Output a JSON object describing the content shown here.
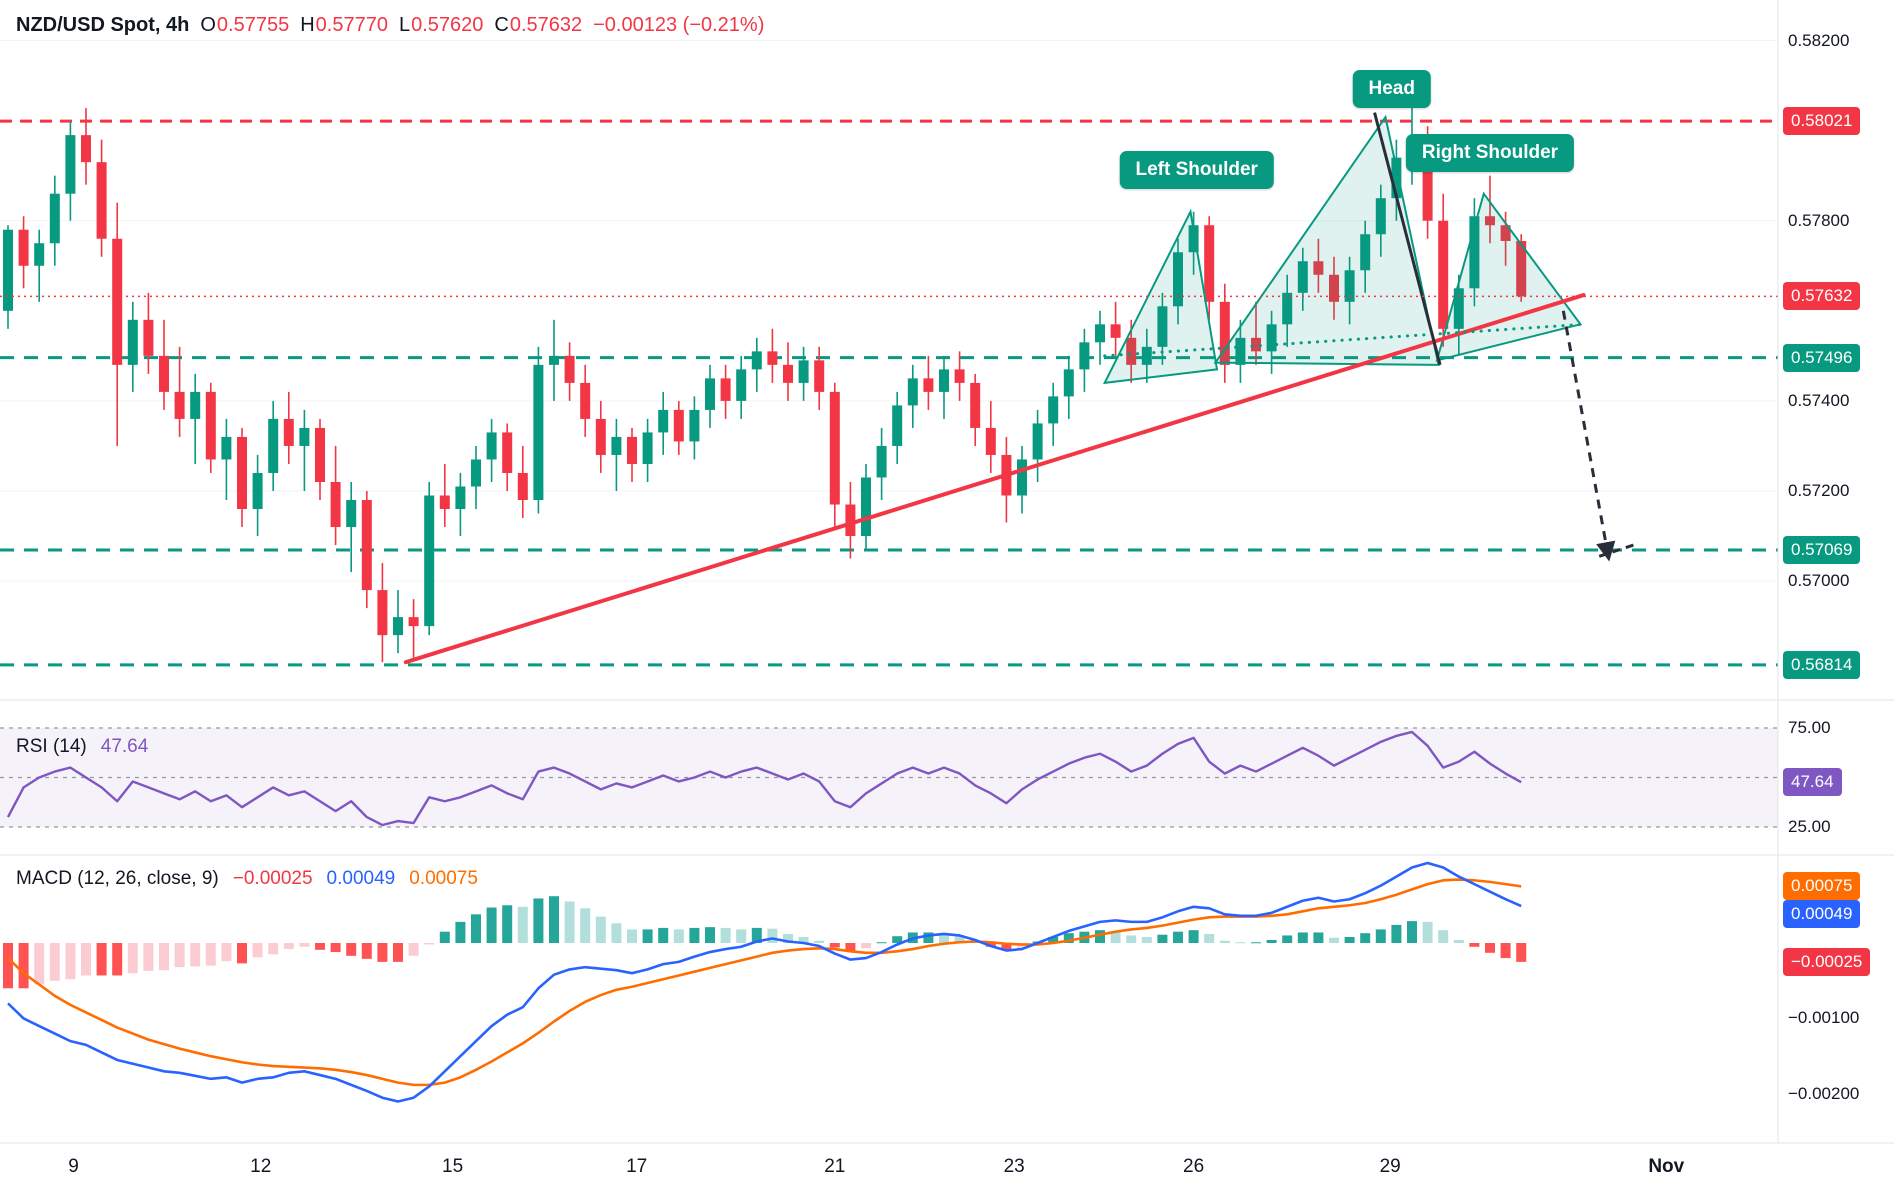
{
  "header": {
    "symbol": "NZD/USD Spot, 4h",
    "o_label": "O",
    "o": "0.57755",
    "h_label": "H",
    "h": "0.57770",
    "l_label": "L",
    "l": "0.57620",
    "c_label": "C",
    "c": "0.57632",
    "change": "−0.00123 (−0.21%)"
  },
  "rsi_legend": {
    "label": "RSI (14)",
    "value": "47.64"
  },
  "macd_legend": {
    "label": "MACD (12, 26, close, 9)",
    "hist": "−0.00025",
    "macd": "0.00049",
    "signal": "0.00075"
  },
  "chart_data": {
    "type": "candlestick",
    "title": "NZD/USD Spot, 4h",
    "colors": {
      "up": "#089981",
      "down": "#f23645",
      "hist_up": "#26a69a",
      "hist_up_fade": "#b2dfdb",
      "hist_down": "#ff5252",
      "hist_down_fade": "#fbcdd2",
      "rsi_line": "#7e57c2",
      "macd_line": "#2962ff",
      "signal_line": "#ff6d00",
      "trendline": "#f23645",
      "pattern": "#089981",
      "black": "#2a2e39"
    },
    "current_price": 0.57632,
    "levels": [
      {
        "value": 0.58021,
        "color": "#f23645",
        "dash": "12 8",
        "width": 3
      },
      {
        "value": 0.57496,
        "color": "#089981",
        "dash": "14 10",
        "width": 3
      },
      {
        "value": 0.57069,
        "color": "#089981",
        "dash": "14 10",
        "width": 3
      },
      {
        "value": 0.56814,
        "color": "#089981",
        "dash": "14 10",
        "width": 3
      }
    ],
    "price_axis": [
      {
        "text": "0.58200",
        "kind": "plain"
      },
      {
        "text": "0.58021",
        "kind": "red"
      },
      {
        "text": "0.57800",
        "kind": "plain"
      },
      {
        "text": "0.57632",
        "kind": "red"
      },
      {
        "text": "0.57496",
        "kind": "teal"
      },
      {
        "text": "0.57400",
        "kind": "plain"
      },
      {
        "text": "0.57200",
        "kind": "plain"
      },
      {
        "text": "0.57069",
        "kind": "teal"
      },
      {
        "text": "0.57000",
        "kind": "plain"
      },
      {
        "text": "0.56814",
        "kind": "teal"
      }
    ],
    "time_axis": [
      {
        "label": "9",
        "bar": 4.2,
        "bold": false
      },
      {
        "label": "12",
        "bar": 16.2,
        "bold": false
      },
      {
        "label": "15",
        "bar": 28.5,
        "bold": false
      },
      {
        "label": "17",
        "bar": 40.3,
        "bold": false
      },
      {
        "label": "21",
        "bar": 53,
        "bold": false
      },
      {
        "label": "23",
        "bar": 64.5,
        "bold": false
      },
      {
        "label": "26",
        "bar": 76,
        "bold": false
      },
      {
        "label": "29",
        "bar": 88.6,
        "bold": false
      },
      {
        "label": "Nov",
        "bar": 106.3,
        "bold": true
      }
    ],
    "pattern_labels": [
      {
        "text": "Left Shoulder",
        "bar": 76.2,
        "price": 0.57913
      },
      {
        "text": "Head",
        "bar": 88.7,
        "price": 0.58092
      },
      {
        "text": "Right Shoulder",
        "bar": 95.0,
        "price": 0.5795
      }
    ],
    "trendline": {
      "from": [
        25.5,
        0.5682
      ],
      "to": [
        101,
        0.57635
      ]
    },
    "neckline": {
      "from": [
        70.3,
        0.575
      ],
      "to": [
        101,
        0.5757
      ]
    },
    "head_drop": {
      "from": [
        87.6,
        0.5804
      ],
      "to": [
        91.8,
        0.5748
      ]
    },
    "projection": {
      "line": [
        [
          99.7,
          0.576
        ],
        [
          102.6,
          0.57052
        ]
      ],
      "hook": [
        [
          102.0,
          0.57055
        ],
        [
          104.2,
          0.5708
        ]
      ]
    },
    "triangles": [
      {
        "points": [
          [
            70.3,
            0.5744
          ],
          [
            75.8,
            0.5782
          ],
          [
            77.5,
            0.5747
          ]
        ]
      },
      {
        "points": [
          [
            77.4,
            0.57485
          ],
          [
            88.3,
            0.5803
          ],
          [
            91.7,
            0.5748
          ]
        ]
      },
      {
        "points": [
          [
            91.6,
            0.5749
          ],
          [
            94.6,
            0.5786
          ],
          [
            100.8,
            0.5757
          ]
        ]
      }
    ],
    "candles": [
      [
        0.576,
        0.5779,
        0.5756,
        0.5778
      ],
      [
        0.5778,
        0.5781,
        0.5765,
        0.577
      ],
      [
        0.577,
        0.5778,
        0.5762,
        0.5775
      ],
      [
        0.5775,
        0.579,
        0.577,
        0.5786
      ],
      [
        0.5786,
        0.5802,
        0.578,
        0.5799
      ],
      [
        0.5799,
        0.5805,
        0.5788,
        0.5793
      ],
      [
        0.5793,
        0.5798,
        0.5772,
        0.5776
      ],
      [
        0.5776,
        0.5784,
        0.573,
        0.5748
      ],
      [
        0.5748,
        0.5762,
        0.5742,
        0.5758
      ],
      [
        0.5758,
        0.5764,
        0.5746,
        0.575
      ],
      [
        0.575,
        0.5758,
        0.5738,
        0.5742
      ],
      [
        0.5742,
        0.5752,
        0.5732,
        0.5736
      ],
      [
        0.5736,
        0.5746,
        0.5726,
        0.5742
      ],
      [
        0.5742,
        0.5744,
        0.5724,
        0.5727
      ],
      [
        0.5727,
        0.5736,
        0.5718,
        0.5732
      ],
      [
        0.5732,
        0.5734,
        0.5712,
        0.5716
      ],
      [
        0.5716,
        0.5728,
        0.571,
        0.5724
      ],
      [
        0.5724,
        0.574,
        0.572,
        0.5736
      ],
      [
        0.5736,
        0.5742,
        0.5726,
        0.573
      ],
      [
        0.573,
        0.5738,
        0.572,
        0.5734
      ],
      [
        0.5734,
        0.5736,
        0.5718,
        0.5722
      ],
      [
        0.5722,
        0.573,
        0.5708,
        0.5712
      ],
      [
        0.5712,
        0.5722,
        0.5702,
        0.5718
      ],
      [
        0.5718,
        0.572,
        0.5694,
        0.5698
      ],
      [
        0.5698,
        0.5704,
        0.5682,
        0.5688
      ],
      [
        0.5688,
        0.5698,
        0.5684,
        0.5692
      ],
      [
        0.5692,
        0.5696,
        0.5683,
        0.569
      ],
      [
        0.569,
        0.5722,
        0.5688,
        0.5719
      ],
      [
        0.5719,
        0.5726,
        0.5712,
        0.5716
      ],
      [
        0.5716,
        0.5724,
        0.571,
        0.5721
      ],
      [
        0.5721,
        0.573,
        0.5716,
        0.5727
      ],
      [
        0.5727,
        0.5736,
        0.5722,
        0.5733
      ],
      [
        0.5733,
        0.5735,
        0.572,
        0.5724
      ],
      [
        0.5724,
        0.573,
        0.5714,
        0.5718
      ],
      [
        0.5718,
        0.5752,
        0.5715,
        0.5748
      ],
      [
        0.5748,
        0.5758,
        0.574,
        0.575
      ],
      [
        0.575,
        0.5753,
        0.574,
        0.5744
      ],
      [
        0.5744,
        0.5748,
        0.5732,
        0.5736
      ],
      [
        0.5736,
        0.574,
        0.5724,
        0.5728
      ],
      [
        0.5728,
        0.5736,
        0.572,
        0.5732
      ],
      [
        0.5732,
        0.5734,
        0.5722,
        0.5726
      ],
      [
        0.5726,
        0.5736,
        0.5722,
        0.5733
      ],
      [
        0.5733,
        0.5742,
        0.5728,
        0.5738
      ],
      [
        0.5738,
        0.574,
        0.5728,
        0.5731
      ],
      [
        0.5731,
        0.5741,
        0.5727,
        0.5738
      ],
      [
        0.5738,
        0.5748,
        0.5734,
        0.5745
      ],
      [
        0.5745,
        0.5748,
        0.5736,
        0.574
      ],
      [
        0.574,
        0.575,
        0.5736,
        0.5747
      ],
      [
        0.5747,
        0.5754,
        0.5742,
        0.5751
      ],
      [
        0.5751,
        0.5756,
        0.5744,
        0.5748
      ],
      [
        0.5748,
        0.5753,
        0.574,
        0.5744
      ],
      [
        0.5744,
        0.5752,
        0.574,
        0.5749
      ],
      [
        0.5749,
        0.5752,
        0.5738,
        0.5742
      ],
      [
        0.5742,
        0.5744,
        0.5712,
        0.5717
      ],
      [
        0.5717,
        0.5722,
        0.5705,
        0.571
      ],
      [
        0.571,
        0.5726,
        0.5707,
        0.5723
      ],
      [
        0.5723,
        0.5734,
        0.5718,
        0.573
      ],
      [
        0.573,
        0.5742,
        0.5726,
        0.5739
      ],
      [
        0.5739,
        0.5748,
        0.5734,
        0.5745
      ],
      [
        0.5745,
        0.575,
        0.5738,
        0.5742
      ],
      [
        0.5742,
        0.575,
        0.5736,
        0.5747
      ],
      [
        0.5747,
        0.5751,
        0.574,
        0.5744
      ],
      [
        0.5744,
        0.5746,
        0.573,
        0.5734
      ],
      [
        0.5734,
        0.574,
        0.5724,
        0.5728
      ],
      [
        0.5728,
        0.5732,
        0.5713,
        0.5719
      ],
      [
        0.5719,
        0.573,
        0.5715,
        0.5727
      ],
      [
        0.5727,
        0.5738,
        0.5722,
        0.5735
      ],
      [
        0.5735,
        0.5744,
        0.573,
        0.5741
      ],
      [
        0.5741,
        0.575,
        0.5736,
        0.5747
      ],
      [
        0.5747,
        0.5756,
        0.5742,
        0.5753
      ],
      [
        0.5753,
        0.576,
        0.5748,
        0.5757
      ],
      [
        0.5757,
        0.5762,
        0.575,
        0.5754
      ],
      [
        0.5754,
        0.5758,
        0.5744,
        0.5748
      ],
      [
        0.5748,
        0.5756,
        0.5744,
        0.5752
      ],
      [
        0.5752,
        0.5764,
        0.5748,
        0.5761
      ],
      [
        0.5761,
        0.5776,
        0.5757,
        0.5773
      ],
      [
        0.5773,
        0.5782,
        0.5768,
        0.5779
      ],
      [
        0.5779,
        0.5781,
        0.5758,
        0.5762
      ],
      [
        0.5762,
        0.5766,
        0.5744,
        0.5748
      ],
      [
        0.5748,
        0.5758,
        0.5744,
        0.5754
      ],
      [
        0.5754,
        0.5762,
        0.5748,
        0.5751
      ],
      [
        0.5751,
        0.576,
        0.5746,
        0.5757
      ],
      [
        0.5757,
        0.5768,
        0.5752,
        0.5764
      ],
      [
        0.5764,
        0.5774,
        0.576,
        0.5771
      ],
      [
        0.5771,
        0.5776,
        0.5764,
        0.5768
      ],
      [
        0.5768,
        0.5772,
        0.5758,
        0.5762
      ],
      [
        0.5762,
        0.5772,
        0.5757,
        0.5769
      ],
      [
        0.5769,
        0.578,
        0.5764,
        0.5777
      ],
      [
        0.5777,
        0.5788,
        0.5772,
        0.5785
      ],
      [
        0.5785,
        0.5798,
        0.578,
        0.5794
      ],
      [
        0.5794,
        0.5805,
        0.5788,
        0.5796
      ],
      [
        0.5796,
        0.5801,
        0.5776,
        0.578
      ],
      [
        0.578,
        0.5786,
        0.5752,
        0.5756
      ],
      [
        0.5756,
        0.5768,
        0.575,
        0.5765
      ],
      [
        0.5765,
        0.5785,
        0.5761,
        0.5781
      ],
      [
        0.5781,
        0.579,
        0.5775,
        0.5779
      ],
      [
        0.5779,
        0.5782,
        0.577,
        0.57755
      ],
      [
        0.57755,
        0.5777,
        0.5762,
        0.57632
      ]
    ],
    "rsi": {
      "upper": 75,
      "middle": 50,
      "lower": 25,
      "axis": [
        {
          "text": "75.00",
          "v": 75,
          "kind": "plain"
        },
        {
          "text": "47.64",
          "v": 47.64,
          "kind": "purple"
        },
        {
          "text": "25.00",
          "v": 25,
          "kind": "plain"
        }
      ],
      "series": [
        30,
        45,
        50,
        53,
        55,
        50,
        45,
        38,
        48,
        45,
        42,
        39,
        43,
        38,
        41,
        35,
        40,
        45,
        41,
        43,
        38,
        33,
        38,
        30,
        26,
        28,
        27,
        40,
        38,
        40,
        43,
        46,
        42,
        39,
        53,
        55,
        52,
        48,
        44,
        47,
        45,
        48,
        51,
        48,
        50,
        53,
        50,
        53,
        55,
        52,
        49,
        52,
        48,
        38,
        35,
        42,
        47,
        52,
        55,
        52,
        55,
        52,
        46,
        42,
        37,
        44,
        49,
        53,
        57,
        60,
        62,
        58,
        53,
        56,
        62,
        67,
        70,
        58,
        52,
        56,
        53,
        57,
        61,
        65,
        61,
        56,
        60,
        64,
        68,
        71,
        73,
        66,
        55,
        58,
        63,
        57,
        52,
        47.64
      ]
    },
    "macd": {
      "axis": [
        {
          "text": "0.00075",
          "kind": "orange"
        },
        {
          "text": "0.00049",
          "kind": "blue"
        },
        {
          "text": "−0.00025",
          "kind": "red"
        },
        {
          "text": "−0.00100",
          "kind": "plain"
        },
        {
          "text": "−0.00200",
          "kind": "plain"
        }
      ],
      "macd": [
        -0.0008,
        -0.001,
        -0.0011,
        -0.0012,
        -0.0013,
        -0.00135,
        -0.00145,
        -0.00155,
        -0.0016,
        -0.00165,
        -0.0017,
        -0.00172,
        -0.00176,
        -0.0018,
        -0.00178,
        -0.00185,
        -0.0018,
        -0.00178,
        -0.00172,
        -0.0017,
        -0.00175,
        -0.0018,
        -0.00188,
        -0.00196,
        -0.00205,
        -0.0021,
        -0.00205,
        -0.0019,
        -0.0017,
        -0.0015,
        -0.0013,
        -0.0011,
        -0.00095,
        -0.00085,
        -0.0006,
        -0.00042,
        -0.00035,
        -0.00032,
        -0.00034,
        -0.00036,
        -0.0004,
        -0.00035,
        -0.00028,
        -0.00025,
        -0.00018,
        -0.00012,
        -8e-05,
        -5e-05,
        2e-05,
        6e-05,
        2e-05,
        0.0,
        -4e-05,
        -0.00014,
        -0.00022,
        -0.0002,
        -0.00012,
        -2e-05,
        6e-05,
        0.0001,
        0.00012,
        0.0001,
        4e-05,
        -4e-05,
        -0.0001,
        -8e-05,
        0.0,
        8e-05,
        0.00016,
        0.00022,
        0.00028,
        0.0003,
        0.00028,
        0.00028,
        0.00034,
        0.00042,
        0.00048,
        0.00046,
        0.00038,
        0.00036,
        0.00036,
        0.0004,
        0.00048,
        0.00056,
        0.0006,
        0.00055,
        0.00058,
        0.00066,
        0.00076,
        0.00088,
        0.001,
        0.00106,
        0.001,
        0.00088,
        0.00078,
        0.00068,
        0.00058,
        0.00049
      ],
      "signal": [
        -0.0002,
        -0.0004,
        -0.00055,
        -0.0007,
        -0.00082,
        -0.00092,
        -0.00102,
        -0.00112,
        -0.0012,
        -0.00128,
        -0.00134,
        -0.0014,
        -0.00145,
        -0.0015,
        -0.00154,
        -0.00158,
        -0.00161,
        -0.00163,
        -0.00164,
        -0.00165,
        -0.00166,
        -0.00168,
        -0.00171,
        -0.00175,
        -0.0018,
        -0.00185,
        -0.00188,
        -0.00188,
        -0.00185,
        -0.00178,
        -0.00168,
        -0.00157,
        -0.00145,
        -0.00133,
        -0.00119,
        -0.00104,
        -0.0009,
        -0.00078,
        -0.00069,
        -0.00062,
        -0.00058,
        -0.00053,
        -0.00048,
        -0.00043,
        -0.00038,
        -0.00033,
        -0.00028,
        -0.00023,
        -0.00018,
        -0.00013,
        -0.0001,
        -8e-05,
        -7e-05,
        -8e-05,
        -0.00011,
        -0.00013,
        -0.00013,
        -0.00011,
        -8e-05,
        -4e-05,
        -1e-05,
        1e-05,
        2e-05,
        1e-05,
        -1e-05,
        -2e-05,
        -2e-05,
        0.0,
        3e-05,
        7e-05,
        0.00011,
        0.00015,
        0.00018,
        0.0002,
        0.00023,
        0.00027,
        0.00031,
        0.00034,
        0.00035,
        0.00035,
        0.00035,
        0.00036,
        0.00038,
        0.00042,
        0.00046,
        0.00048,
        0.0005,
        0.00053,
        0.00058,
        0.00064,
        0.00071,
        0.00078,
        0.00083,
        0.00084,
        0.00083,
        0.00081,
        0.00078,
        0.00075
      ],
      "hist": [
        -0.0006,
        -0.0006,
        -0.00055,
        -0.0005,
        -0.00048,
        -0.00043,
        -0.00043,
        -0.00043,
        -0.0004,
        -0.00037,
        -0.00036,
        -0.00032,
        -0.00031,
        -0.0003,
        -0.00024,
        -0.00027,
        -0.00019,
        -0.00015,
        -8e-05,
        -5e-05,
        -9e-05,
        -0.00012,
        -0.00017,
        -0.00021,
        -0.00025,
        -0.00025,
        -0.00017,
        -2e-05,
        0.00015,
        0.00028,
        0.00038,
        0.00047,
        0.0005,
        0.00048,
        0.00059,
        0.00062,
        0.00055,
        0.00046,
        0.00035,
        0.00026,
        0.00018,
        0.00018,
        0.0002,
        0.00018,
        0.0002,
        0.00021,
        0.0002,
        0.00018,
        0.0002,
        0.00019,
        0.00012,
        8e-05,
        3e-05,
        -6e-05,
        -0.00011,
        -7e-05,
        1e-05,
        9e-05,
        0.00014,
        0.00014,
        0.00013,
        9e-05,
        2e-05,
        -5e-05,
        -9e-05,
        -6e-05,
        2e-05,
        8e-05,
        0.00013,
        0.00015,
        0.00017,
        0.00015,
        0.0001,
        8e-05,
        0.00011,
        0.00015,
        0.00017,
        0.00012,
        3e-05,
        1e-05,
        1e-05,
        4e-05,
        0.0001,
        0.00014,
        0.00014,
        7e-05,
        8e-05,
        0.00013,
        0.00018,
        0.00024,
        0.00029,
        0.00028,
        0.00017,
        4e-05,
        -5e-05,
        -0.00013,
        -0.0002,
        -0.00025
      ]
    }
  }
}
